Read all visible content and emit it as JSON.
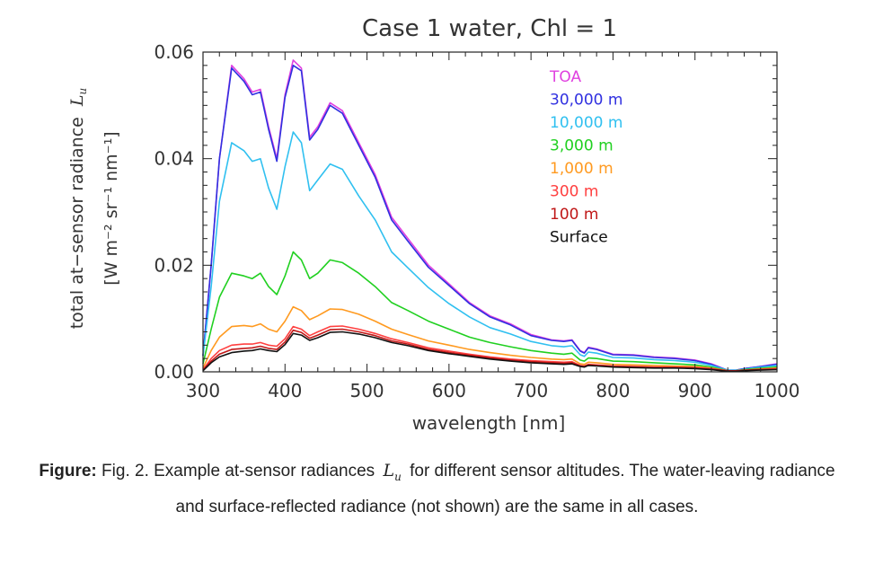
{
  "chart_data": {
    "type": "line",
    "title": "Case 1 water, Chl = 1",
    "xlabel": "wavelength [nm]",
    "ylabel_line1": "total at−sensor radiance",
    "ylabel_symbol": "L",
    "ylabel_symbol_sub": "u",
    "ylabel_line2": "[W m⁻² sr⁻¹ nm⁻¹]",
    "xlim": [
      300,
      1000
    ],
    "ylim": [
      0,
      0.06
    ],
    "x_ticks": [
      300,
      400,
      500,
      600,
      700,
      800,
      900,
      1000
    ],
    "x_tick_labels": [
      "300",
      "400",
      "500",
      "600",
      "700",
      "800",
      "900",
      "1000"
    ],
    "y_ticks": [
      0,
      0.02,
      0.04,
      0.06
    ],
    "y_tick_labels": [
      "0.00",
      "0.02",
      "0.04",
      "0.06"
    ],
    "grid": false,
    "legend_position": "top-right",
    "x": [
      300,
      310,
      320,
      335,
      350,
      360,
      370,
      380,
      390,
      400,
      410,
      420,
      430,
      440,
      455,
      470,
      490,
      510,
      530,
      550,
      575,
      600,
      625,
      650,
      675,
      700,
      725,
      740,
      750,
      760,
      765,
      770,
      780,
      800,
      825,
      850,
      875,
      900,
      920,
      940,
      950,
      960,
      975,
      1000
    ],
    "series": [
      {
        "name": "TOA",
        "color": "#e040e0",
        "values": [
          0.003,
          0.02,
          0.04,
          0.0575,
          0.055,
          0.0525,
          0.053,
          0.046,
          0.04,
          0.052,
          0.0585,
          0.057,
          0.044,
          0.046,
          0.0505,
          0.049,
          0.043,
          0.037,
          0.029,
          0.025,
          0.02,
          0.0165,
          0.013,
          0.0105,
          0.009,
          0.007,
          0.006,
          0.0058,
          0.006,
          0.004,
          0.0036,
          0.0046,
          0.0043,
          0.0033,
          0.0032,
          0.0028,
          0.0026,
          0.0022,
          0.0015,
          0.0003,
          0.0003,
          0.0006,
          0.0009,
          0.0015
        ]
      },
      {
        "name": "30,000 m",
        "color": "#3030e0",
        "values": [
          0.003,
          0.02,
          0.04,
          0.057,
          0.0545,
          0.052,
          0.0525,
          0.0455,
          0.0395,
          0.0515,
          0.0575,
          0.0565,
          0.0435,
          0.0455,
          0.05,
          0.0485,
          0.0425,
          0.0365,
          0.0285,
          0.0245,
          0.0196,
          0.0162,
          0.0128,
          0.0103,
          0.0088,
          0.0068,
          0.0059,
          0.0057,
          0.0059,
          0.0039,
          0.0035,
          0.0045,
          0.0042,
          0.0032,
          0.0031,
          0.0027,
          0.0025,
          0.0021,
          0.0014,
          0.0003,
          0.0003,
          0.0006,
          0.0009,
          0.0014
        ]
      },
      {
        "name": "10,000 m",
        "color": "#30c0f0",
        "values": [
          0.003,
          0.016,
          0.032,
          0.043,
          0.0415,
          0.0395,
          0.04,
          0.0345,
          0.0305,
          0.0385,
          0.045,
          0.043,
          0.034,
          0.036,
          0.039,
          0.038,
          0.033,
          0.0285,
          0.0225,
          0.0195,
          0.0158,
          0.0128,
          0.0103,
          0.0083,
          0.0071,
          0.0057,
          0.0049,
          0.0047,
          0.0049,
          0.0032,
          0.0029,
          0.0037,
          0.0035,
          0.0027,
          0.0026,
          0.0023,
          0.0021,
          0.0018,
          0.0012,
          0.0003,
          0.0003,
          0.0005,
          0.0008,
          0.0012
        ]
      },
      {
        "name": "3,000 m",
        "color": "#20d020",
        "values": [
          0.0015,
          0.008,
          0.014,
          0.0185,
          0.018,
          0.0175,
          0.0185,
          0.016,
          0.0145,
          0.018,
          0.0225,
          0.021,
          0.0175,
          0.0185,
          0.021,
          0.0205,
          0.0185,
          0.016,
          0.013,
          0.0115,
          0.0095,
          0.008,
          0.0065,
          0.0055,
          0.0047,
          0.004,
          0.0035,
          0.0033,
          0.0035,
          0.0022,
          0.002,
          0.0026,
          0.0025,
          0.002,
          0.0019,
          0.0017,
          0.0015,
          0.0013,
          0.0009,
          0.0002,
          0.0002,
          0.0004,
          0.0006,
          0.0009
        ]
      },
      {
        "name": "1,000 m",
        "color": "#ff9a20",
        "values": [
          0.0007,
          0.004,
          0.0065,
          0.0085,
          0.0087,
          0.0085,
          0.009,
          0.008,
          0.0075,
          0.0095,
          0.0122,
          0.0115,
          0.0098,
          0.0105,
          0.0118,
          0.0117,
          0.0108,
          0.0095,
          0.008,
          0.007,
          0.0058,
          0.005,
          0.0042,
          0.0036,
          0.0031,
          0.0027,
          0.0024,
          0.0023,
          0.0024,
          0.0015,
          0.0014,
          0.0018,
          0.0017,
          0.0014,
          0.0013,
          0.0012,
          0.0011,
          0.001,
          0.0007,
          0.0002,
          0.0002,
          0.0003,
          0.0005,
          0.0007
        ]
      },
      {
        "name": "300 m",
        "color": "#ff4040",
        "values": [
          0.0004,
          0.0025,
          0.004,
          0.005,
          0.0052,
          0.0052,
          0.0055,
          0.005,
          0.0048,
          0.0062,
          0.0085,
          0.008,
          0.0068,
          0.0075,
          0.0085,
          0.0086,
          0.008,
          0.0072,
          0.0062,
          0.0055,
          0.0045,
          0.0039,
          0.0033,
          0.0028,
          0.0024,
          0.0021,
          0.0019,
          0.0018,
          0.0019,
          0.0012,
          0.0011,
          0.0014,
          0.0013,
          0.0011,
          0.001,
          0.0009,
          0.0009,
          0.0008,
          0.0006,
          0.0002,
          0.0002,
          0.0003,
          0.0004,
          0.0006
        ]
      },
      {
        "name": "100 m",
        "color": "#c01818",
        "values": [
          0.0003,
          0.002,
          0.0033,
          0.0042,
          0.0044,
          0.0045,
          0.0048,
          0.0044,
          0.0042,
          0.0056,
          0.0078,
          0.0074,
          0.0063,
          0.0069,
          0.0079,
          0.008,
          0.0075,
          0.0068,
          0.0058,
          0.0052,
          0.0042,
          0.0036,
          0.0031,
          0.0026,
          0.0022,
          0.0019,
          0.0017,
          0.0016,
          0.0017,
          0.0011,
          0.001,
          0.0013,
          0.0012,
          0.001,
          0.0009,
          0.0008,
          0.0008,
          0.0007,
          0.0005,
          0.0002,
          0.0002,
          0.0003,
          0.0004,
          0.0005
        ]
      },
      {
        "name": "Surface",
        "color": "#111111",
        "values": [
          0.0002,
          0.0017,
          0.0028,
          0.0036,
          0.0039,
          0.004,
          0.0043,
          0.004,
          0.0038,
          0.0051,
          0.0072,
          0.0069,
          0.0059,
          0.0064,
          0.0074,
          0.0075,
          0.0071,
          0.0064,
          0.0055,
          0.0049,
          0.004,
          0.0034,
          0.0029,
          0.0024,
          0.002,
          0.0017,
          0.0015,
          0.0014,
          0.0015,
          0.001,
          0.0009,
          0.0012,
          0.0011,
          0.0009,
          0.0008,
          0.0007,
          0.0007,
          0.0006,
          0.0004,
          0.0001,
          0.0001,
          0.0002,
          0.0003,
          0.0004
        ]
      }
    ]
  },
  "caption": {
    "label": "Figure:",
    "text_before": " Fig. 2. Example at-sensor radiances ",
    "symbol": "L",
    "symbol_sub": "u",
    "text_after": " for different sensor altitudes. The water-leaving radiance and surface-reflected radiance (not shown) are the same in all cases."
  }
}
